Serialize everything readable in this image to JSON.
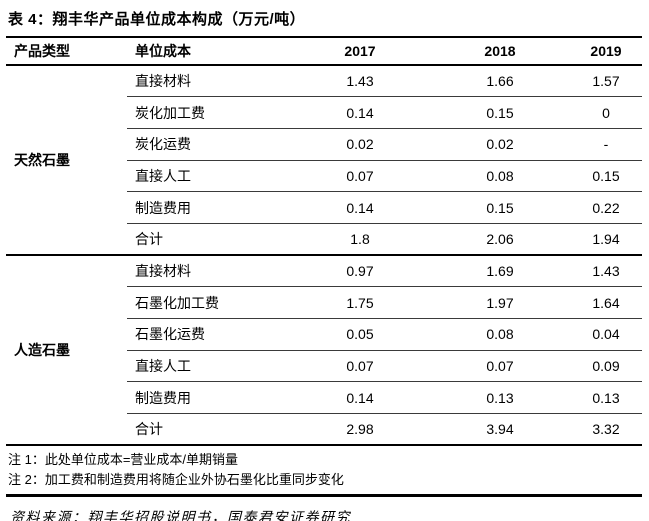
{
  "title": "表 4：翔丰华产品单位成本构成（万元/吨）",
  "table": {
    "headers": [
      "产品类型",
      "单位成本",
      "2017",
      "2018",
      "2019"
    ],
    "groups": [
      {
        "category": "天然石墨",
        "rows": [
          {
            "label": "直接材料",
            "values": [
              "1.43",
              "1.66",
              "1.57"
            ]
          },
          {
            "label": "炭化加工费",
            "values": [
              "0.14",
              "0.15",
              "0"
            ]
          },
          {
            "label": "炭化运费",
            "values": [
              "0.02",
              "0.02",
              "-"
            ]
          },
          {
            "label": "直接人工",
            "values": [
              "0.07",
              "0.08",
              "0.15"
            ]
          },
          {
            "label": "制造费用",
            "values": [
              "0.14",
              "0.15",
              "0.22"
            ]
          },
          {
            "label": "合计",
            "values": [
              "1.8",
              "2.06",
              "1.94"
            ]
          }
        ]
      },
      {
        "category": "人造石墨",
        "rows": [
          {
            "label": "直接材料",
            "values": [
              "0.97",
              "1.69",
              "1.43"
            ]
          },
          {
            "label": "石墨化加工费",
            "values": [
              "1.75",
              "1.97",
              "1.64"
            ]
          },
          {
            "label": "石墨化运费",
            "values": [
              "0.05",
              "0.08",
              "0.04"
            ]
          },
          {
            "label": "直接人工",
            "values": [
              "0.07",
              "0.07",
              "0.09"
            ]
          },
          {
            "label": "制造费用",
            "values": [
              "0.14",
              "0.13",
              "0.13"
            ]
          },
          {
            "label": "合计",
            "values": [
              "2.98",
              "3.94",
              "3.32"
            ]
          }
        ]
      }
    ]
  },
  "notes": [
    "注 1：此处单位成本=营业成本/单期销量",
    "注 2：加工费和制造费用将随企业外协石墨化比重同步变化"
  ],
  "source": "资料来源：翔丰华招股说明书，国泰君安证券研究"
}
